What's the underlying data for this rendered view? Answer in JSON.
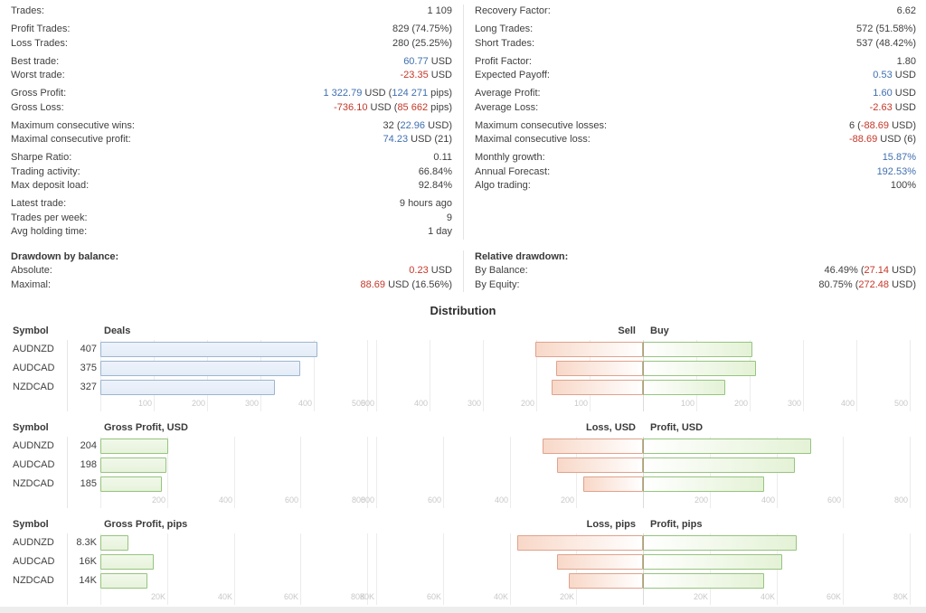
{
  "colors": {
    "accent_blue": "#3f6fb0",
    "accent_red": "#c53728",
    "text": "#3f3f3f",
    "tick": "#c8c8c8",
    "bar_blue_border": "#9db5cf",
    "bar_green_border": "#96c47f",
    "bar_red_border": "#dfa28c"
  },
  "stats": {
    "left": [
      [
        {
          "label": "Trades:",
          "parts": [
            [
              "1 109",
              "d"
            ]
          ]
        }
      ],
      [
        {
          "label": "Profit Trades:",
          "parts": [
            [
              "829 (74.75%)",
              "d"
            ]
          ]
        },
        {
          "label": "Loss Trades:",
          "parts": [
            [
              "280 (25.25%)",
              "d"
            ]
          ]
        }
      ],
      [
        {
          "label": "Best trade:",
          "parts": [
            [
              "60.77",
              "b"
            ],
            [
              " USD",
              "d"
            ]
          ]
        },
        {
          "label": "Worst trade:",
          "parts": [
            [
              "-23.35",
              "r"
            ],
            [
              " USD",
              "d"
            ]
          ]
        }
      ],
      [
        {
          "label": "Gross Profit:",
          "parts": [
            [
              "1 322.79",
              "b"
            ],
            [
              " USD (",
              "d"
            ],
            [
              "124 271",
              "b"
            ],
            [
              " pips)",
              "d"
            ]
          ]
        },
        {
          "label": "Gross Loss:",
          "parts": [
            [
              "-736.10",
              "r"
            ],
            [
              " USD (",
              "d"
            ],
            [
              "85 662",
              "r"
            ],
            [
              " pips)",
              "d"
            ]
          ]
        }
      ],
      [
        {
          "label": "Maximum consecutive wins:",
          "parts": [
            [
              "32 (",
              "d"
            ],
            [
              "22.96",
              "b"
            ],
            [
              " USD)",
              "d"
            ]
          ]
        },
        {
          "label": "Maximal consecutive profit:",
          "parts": [
            [
              "74.23",
              "b"
            ],
            [
              " USD (21)",
              "d"
            ]
          ]
        }
      ],
      [
        {
          "label": "Sharpe Ratio:",
          "parts": [
            [
              "0.11",
              "d"
            ]
          ]
        },
        {
          "label": "Trading activity:",
          "parts": [
            [
              "66.84%",
              "d"
            ]
          ]
        },
        {
          "label": "Max deposit load:",
          "parts": [
            [
              "92.84%",
              "d"
            ]
          ]
        }
      ],
      [
        {
          "label": "Latest trade:",
          "parts": [
            [
              "9 hours ago",
              "d"
            ]
          ]
        },
        {
          "label": "Trades per week:",
          "parts": [
            [
              "9",
              "d"
            ]
          ]
        },
        {
          "label": "Avg holding time:",
          "parts": [
            [
              "1 day",
              "d"
            ]
          ]
        }
      ]
    ],
    "right": [
      [
        {
          "label": "Recovery Factor:",
          "parts": [
            [
              "6.62",
              "d"
            ]
          ]
        }
      ],
      [
        {
          "label": "Long Trades:",
          "parts": [
            [
              "572 (51.58%)",
              "d"
            ]
          ]
        },
        {
          "label": "Short Trades:",
          "parts": [
            [
              "537 (48.42%)",
              "d"
            ]
          ]
        }
      ],
      [
        {
          "label": "Profit Factor:",
          "parts": [
            [
              "1.80",
              "d"
            ]
          ]
        },
        {
          "label": "Expected Payoff:",
          "parts": [
            [
              "0.53",
              "b"
            ],
            [
              " USD",
              "d"
            ]
          ]
        }
      ],
      [
        {
          "label": "Average Profit:",
          "parts": [
            [
              "1.60",
              "b"
            ],
            [
              " USD",
              "d"
            ]
          ]
        },
        {
          "label": "Average Loss:",
          "parts": [
            [
              "-2.63",
              "r"
            ],
            [
              " USD",
              "d"
            ]
          ]
        }
      ],
      [
        {
          "label": "Maximum consecutive losses:",
          "parts": [
            [
              "6 (",
              "d"
            ],
            [
              "-88.69",
              "r"
            ],
            [
              " USD)",
              "d"
            ]
          ]
        },
        {
          "label": "Maximal consecutive loss:",
          "parts": [
            [
              "-88.69",
              "r"
            ],
            [
              " USD (6)",
              "d"
            ]
          ]
        }
      ],
      [
        {
          "label": "Monthly growth:",
          "parts": [
            [
              "15.87%",
              "b"
            ]
          ]
        },
        {
          "label": "Annual Forecast:",
          "parts": [
            [
              "192.53%",
              "b"
            ]
          ]
        },
        {
          "label": "Algo trading:",
          "parts": [
            [
              "100%",
              "d"
            ]
          ]
        }
      ]
    ]
  },
  "drawdown": {
    "left": {
      "header": "Drawdown by balance:",
      "rows": [
        {
          "label": "Absolute:",
          "parts": [
            [
              "0.23",
              "r"
            ],
            [
              " USD",
              "d"
            ]
          ]
        },
        {
          "label": "Maximal:",
          "parts": [
            [
              "88.69",
              "r"
            ],
            [
              " USD (16.56%)",
              "d"
            ]
          ]
        }
      ]
    },
    "right": {
      "header": "Relative drawdown:",
      "rows": [
        {
          "label": "By Balance:",
          "parts": [
            [
              "46.49% (",
              "d"
            ],
            [
              "27.14",
              "r"
            ],
            [
              " USD)",
              "d"
            ]
          ]
        },
        {
          "label": "By Equity:",
          "parts": [
            [
              "80.75% (",
              "d"
            ],
            [
              "272.48",
              "r"
            ],
            [
              " USD)",
              "d"
            ]
          ]
        }
      ]
    }
  },
  "distribution": {
    "title": "Distribution",
    "symbol_header": "Symbol",
    "symbols": [
      "AUDNZD",
      "AUDCAD",
      "NZDCAD"
    ]
  },
  "chart_data": [
    {
      "id": "deals",
      "type": "bar",
      "orientation": "horizontal",
      "title": "Deals",
      "categories": [
        "AUDNZD",
        "AUDCAD",
        "NZDCAD"
      ],
      "values": [
        407,
        375,
        327
      ],
      "value_labels": [
        "407",
        "375",
        "327"
      ],
      "xlim": [
        0,
        500
      ],
      "xticks": [
        100,
        200,
        300,
        400,
        500
      ],
      "tick_labels": [
        "100",
        "200",
        "300",
        "400",
        "500"
      ],
      "bar_color": "blue"
    },
    {
      "id": "sell-buy",
      "type": "bar",
      "orientation": "horizontal",
      "diverging": true,
      "neg_label": "Sell",
      "pos_label": "Buy",
      "categories": [
        "AUDNZD",
        "AUDCAD",
        "NZDCAD"
      ],
      "series": [
        {
          "name": "Sell",
          "values": [
            202,
            163,
            172
          ]
        },
        {
          "name": "Buy",
          "values": [
            205,
            212,
            155
          ]
        }
      ],
      "xlim": [
        -500,
        500
      ],
      "xticks": [
        100,
        200,
        300,
        400,
        500
      ],
      "tick_labels": [
        "100",
        "200",
        "300",
        "400",
        "500"
      ]
    },
    {
      "id": "gross-profit-usd",
      "type": "bar",
      "orientation": "horizontal",
      "title": "Gross Profit, USD",
      "categories": [
        "AUDNZD",
        "AUDCAD",
        "NZDCAD"
      ],
      "values": [
        204,
        198,
        185
      ],
      "value_labels": [
        "204",
        "198",
        "185"
      ],
      "xlim": [
        0,
        800
      ],
      "xticks": [
        200,
        400,
        600,
        800
      ],
      "tick_labels": [
        "200",
        "400",
        "600",
        "800"
      ],
      "bar_color": "green"
    },
    {
      "id": "loss-profit-usd",
      "type": "bar",
      "orientation": "horizontal",
      "diverging": true,
      "neg_label": "Loss, USD",
      "pos_label": "Profit, USD",
      "categories": [
        "AUDNZD",
        "AUDCAD",
        "NZDCAD"
      ],
      "series": [
        {
          "name": "Loss, USD",
          "values": [
            300,
            258,
            178
          ]
        },
        {
          "name": "Profit, USD",
          "values": [
            504,
            456,
            363
          ]
        }
      ],
      "xlim": [
        -800,
        800
      ],
      "xticks": [
        200,
        400,
        600,
        800
      ],
      "tick_labels": [
        "200",
        "400",
        "600",
        "800"
      ]
    },
    {
      "id": "gross-profit-pips",
      "type": "bar",
      "orientation": "horizontal",
      "title": "Gross Profit, pips",
      "categories": [
        "AUDNZD",
        "AUDCAD",
        "NZDCAD"
      ],
      "values": [
        8300,
        16000,
        14000
      ],
      "value_labels": [
        "8.3K",
        "16K",
        "14K"
      ],
      "xlim": [
        0,
        80000
      ],
      "xticks": [
        20000,
        40000,
        60000,
        80000
      ],
      "tick_labels": [
        "20K",
        "40K",
        "60K",
        "80K"
      ],
      "bar_color": "green"
    },
    {
      "id": "loss-profit-pips",
      "type": "bar",
      "orientation": "horizontal",
      "diverging": true,
      "neg_label": "Loss, pips",
      "pos_label": "Profit, pips",
      "categories": [
        "AUDNZD",
        "AUDCAD",
        "NZDCAD"
      ],
      "series": [
        {
          "name": "Loss, pips",
          "values": [
            37700,
            25700,
            22300
          ]
        },
        {
          "name": "Profit, pips",
          "values": [
            46000,
            41700,
            36300
          ]
        }
      ],
      "xlim": [
        -80000,
        80000
      ],
      "xticks": [
        20000,
        40000,
        60000,
        80000
      ],
      "tick_labels": [
        "20K",
        "40K",
        "60K",
        "80K"
      ]
    }
  ]
}
